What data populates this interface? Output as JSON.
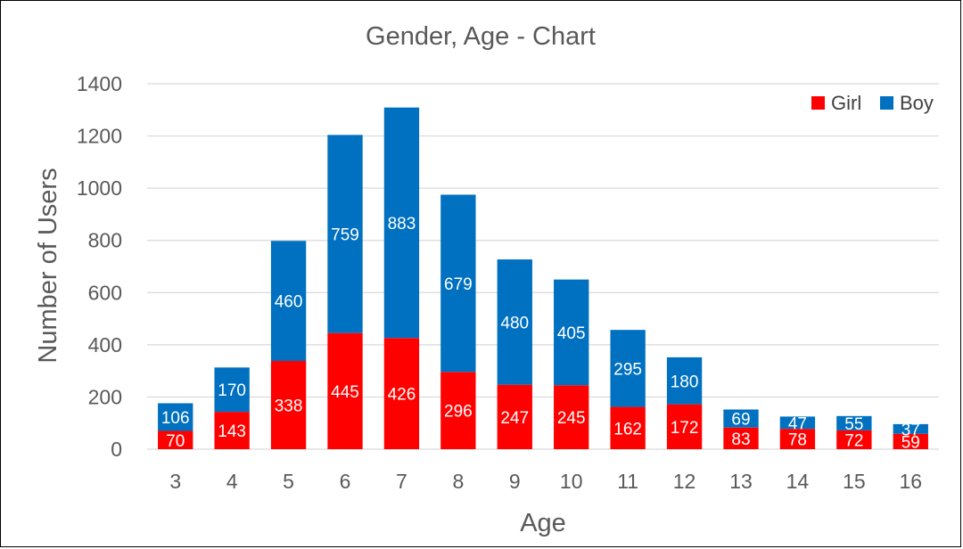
{
  "chart_data": {
    "type": "bar",
    "stacked": true,
    "title": "Gender, Age - Chart",
    "xlabel": "Age",
    "ylabel": "Number of Users",
    "ylim": [
      0,
      1400
    ],
    "yticks": [
      0,
      200,
      400,
      600,
      800,
      1000,
      1200,
      1400
    ],
    "grid": true,
    "legend_position": "top-right",
    "categories": [
      "3",
      "4",
      "5",
      "6",
      "7",
      "8",
      "9",
      "10",
      "11",
      "12",
      "13",
      "14",
      "15",
      "16"
    ],
    "series": [
      {
        "name": "Girl",
        "color": "#ff0000",
        "values": [
          70,
          143,
          338,
          445,
          426,
          296,
          247,
          245,
          162,
          172,
          83,
          78,
          72,
          59
        ]
      },
      {
        "name": "Boy",
        "color": "#0070c0",
        "values": [
          106,
          170,
          460,
          759,
          883,
          679,
          480,
          405,
          295,
          180,
          69,
          47,
          55,
          37
        ]
      }
    ]
  }
}
